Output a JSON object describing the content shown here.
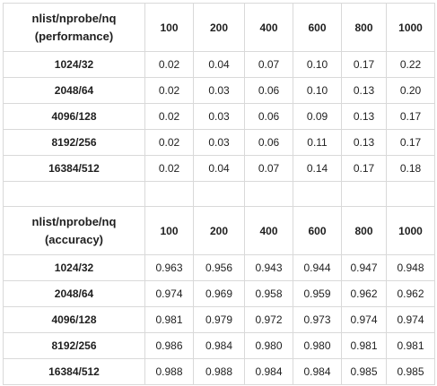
{
  "performance": {
    "header_line1": "nlist/nprobe/nq",
    "header_line2": "(performance)",
    "columns": [
      "100",
      "200",
      "400",
      "600",
      "800",
      "1000"
    ],
    "rows": [
      {
        "label": "1024/32",
        "values": [
          "0.02",
          "0.04",
          "0.07",
          "0.10",
          "0.17",
          "0.22"
        ]
      },
      {
        "label": "2048/64",
        "values": [
          "0.02",
          "0.03",
          "0.06",
          "0.10",
          "0.13",
          "0.20"
        ]
      },
      {
        "label": "4096/128",
        "values": [
          "0.02",
          "0.03",
          "0.06",
          "0.09",
          "0.13",
          "0.17"
        ]
      },
      {
        "label": "8192/256",
        "values": [
          "0.02",
          "0.03",
          "0.06",
          "0.11",
          "0.13",
          "0.17"
        ]
      },
      {
        "label": "16384/512",
        "values": [
          "0.02",
          "0.04",
          "0.07",
          "0.14",
          "0.17",
          "0.18"
        ]
      }
    ]
  },
  "accuracy": {
    "header_line1": "nlist/nprobe/nq",
    "header_line2": "(accuracy)",
    "columns": [
      "100",
      "200",
      "400",
      "600",
      "800",
      "1000"
    ],
    "rows": [
      {
        "label": "1024/32",
        "values": [
          "0.963",
          "0.956",
          "0.943",
          "0.944",
          "0.947",
          "0.948"
        ]
      },
      {
        "label": "2048/64",
        "values": [
          "0.974",
          "0.969",
          "0.958",
          "0.959",
          "0.962",
          "0.962"
        ]
      },
      {
        "label": "4096/128",
        "values": [
          "0.981",
          "0.979",
          "0.972",
          "0.973",
          "0.974",
          "0.974"
        ]
      },
      {
        "label": "8192/256",
        "values": [
          "0.986",
          "0.984",
          "0.980",
          "0.980",
          "0.981",
          "0.981"
        ]
      },
      {
        "label": "16384/512",
        "values": [
          "0.988",
          "0.988",
          "0.984",
          "0.984",
          "0.985",
          "0.985"
        ]
      }
    ]
  },
  "colors": {
    "border": "#d9d9d9",
    "text": "#1f1f1f",
    "background": "#ffffff"
  }
}
